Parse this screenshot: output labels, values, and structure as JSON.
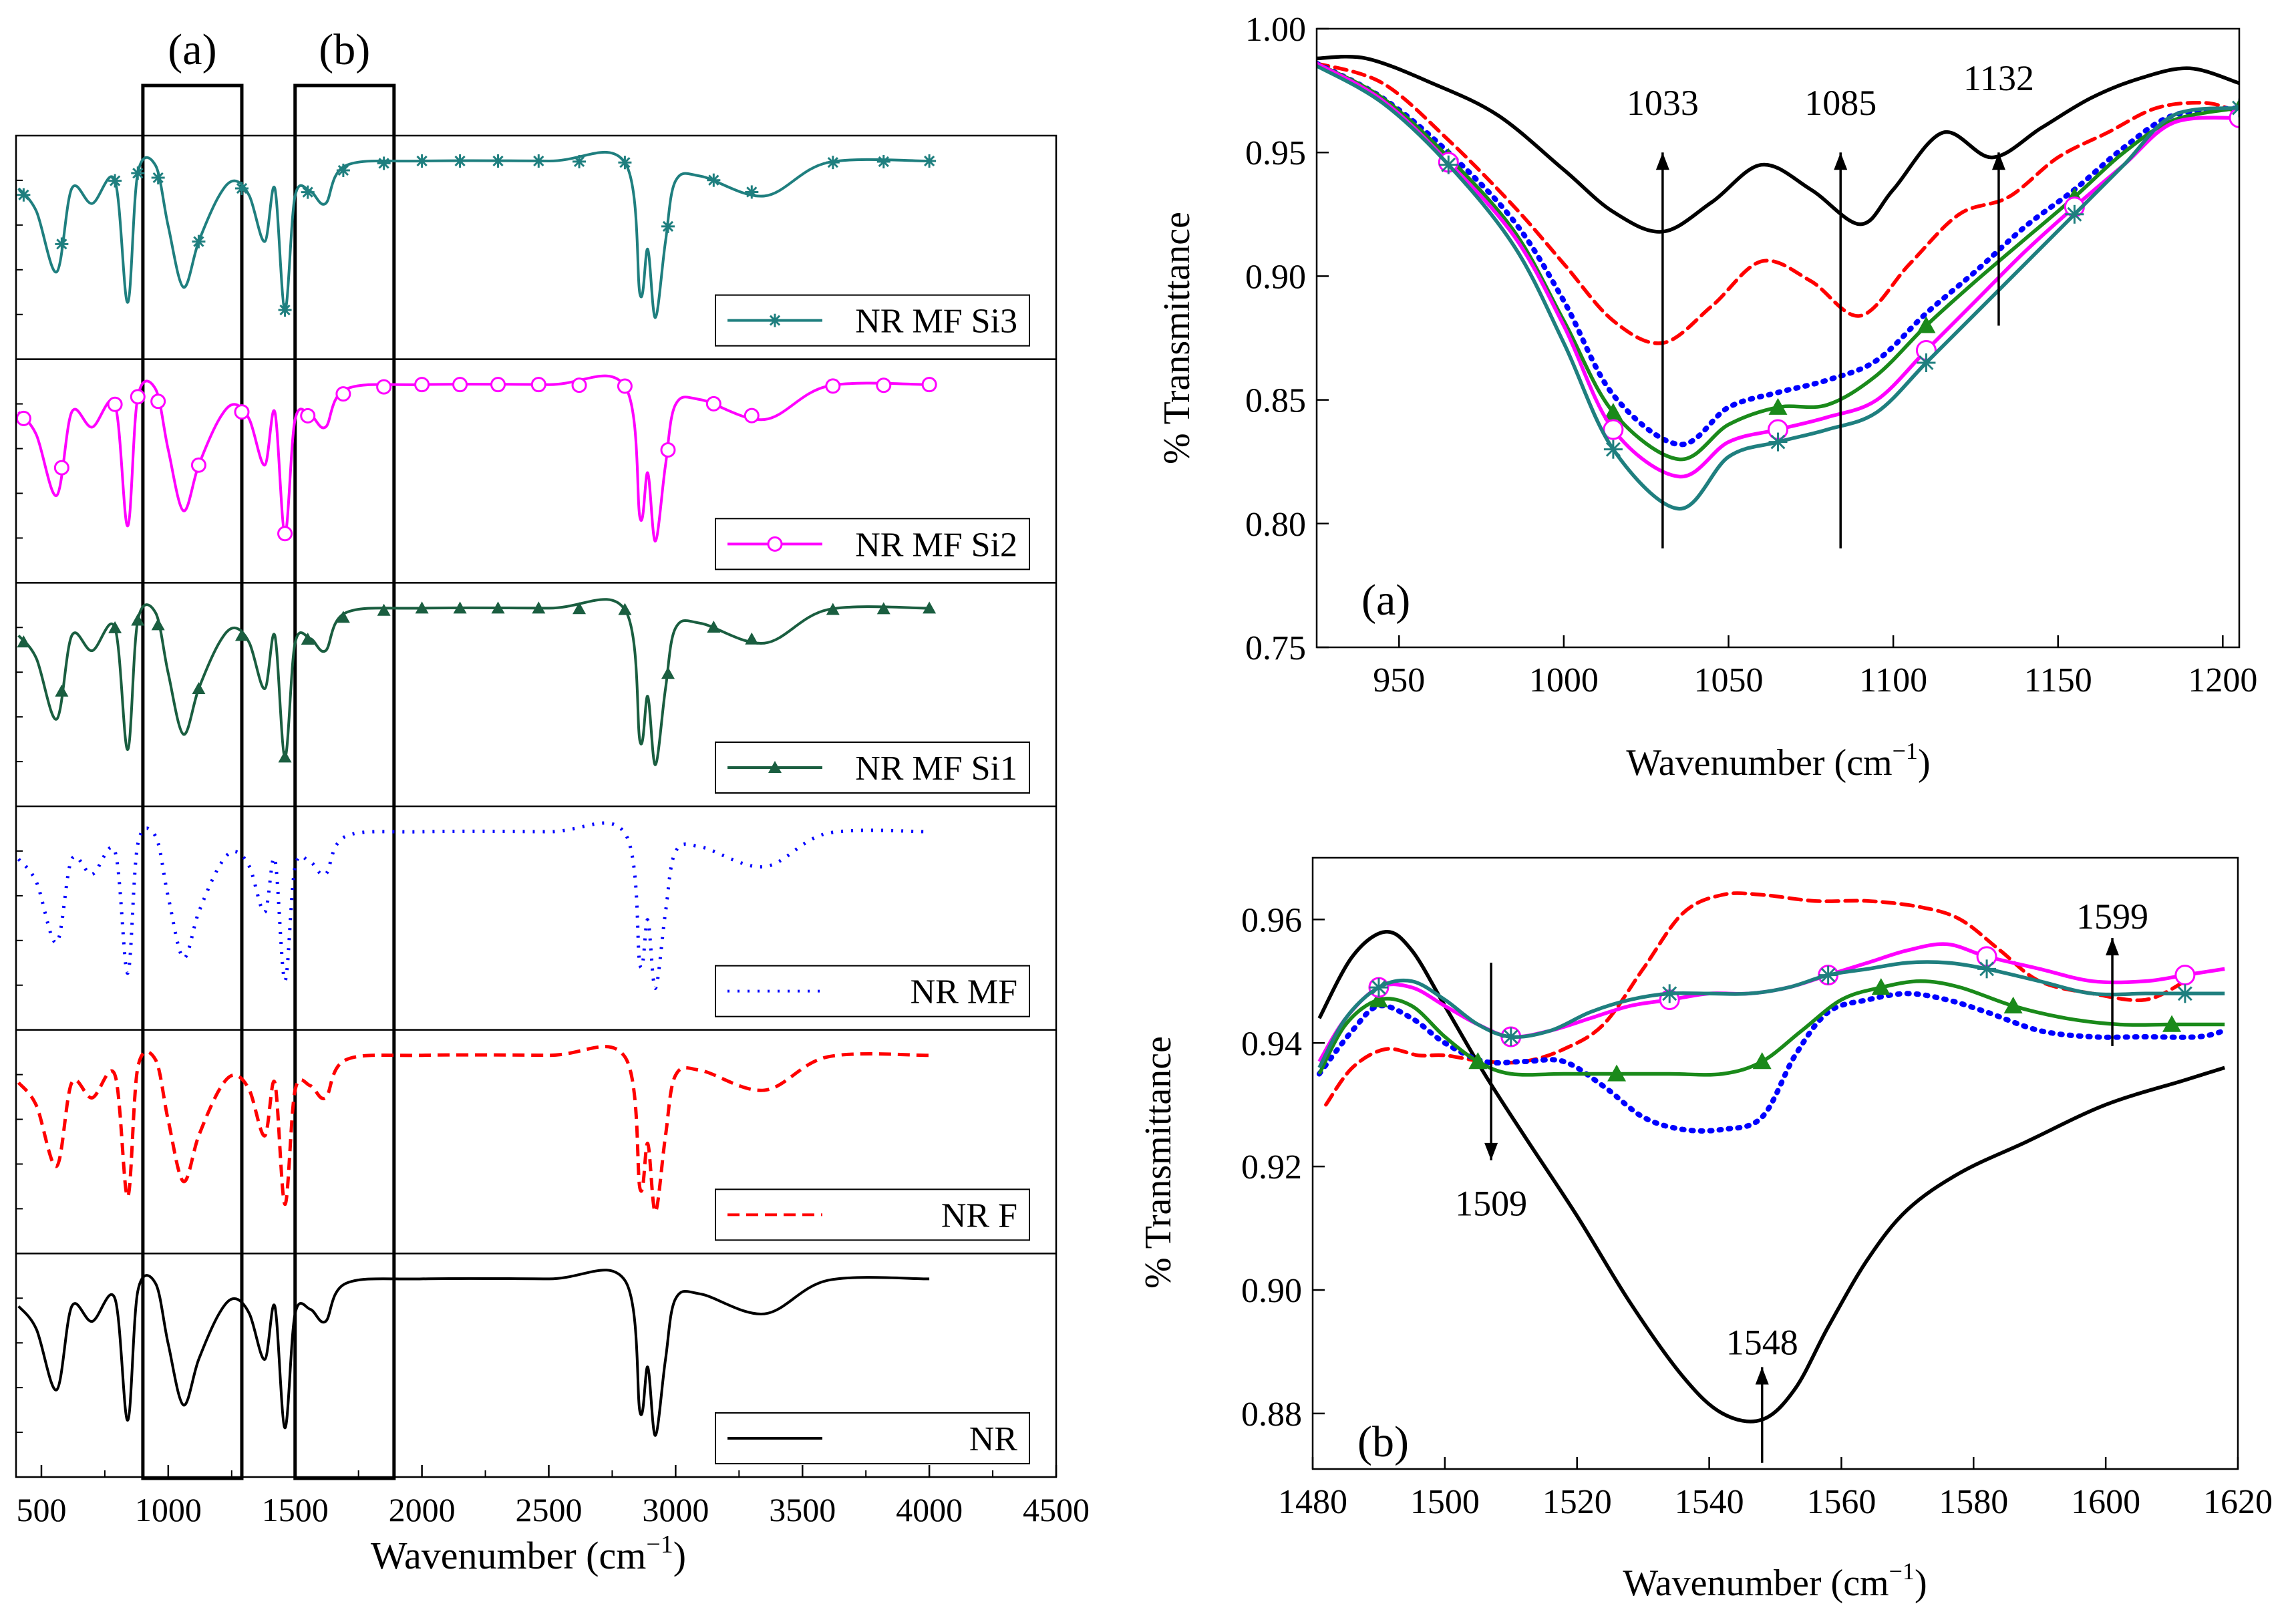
{
  "chart_data": [
    {
      "id": "stacked",
      "type": "line",
      "title": "",
      "xlabel": "Wavenumber (cm",
      "xlabel_sup": "−1",
      "xlabel_close": ")",
      "xlim": [
        400,
        4500
      ],
      "xticks": [
        500,
        1000,
        1500,
        2000,
        2500,
        3000,
        3500,
        4000,
        4500
      ],
      "box_labels": [
        "(a)",
        "(b)"
      ],
      "boxes": [
        [
          900,
          1290
        ],
        [
          1500,
          1890
        ]
      ],
      "series": [
        {
          "name": "NR MF Si3",
          "color": "#1f7f7f",
          "marker": "star",
          "dash": ""
        },
        {
          "name": "NR MF Si2",
          "color": "#ff00ff",
          "marker": "circle",
          "dash": ""
        },
        {
          "name": "NR MF Si1",
          "color": "#1a5e40",
          "marker": "triangle",
          "dash": ""
        },
        {
          "name": "NR MF",
          "color": "#0000ff",
          "marker": "none",
          "dash": "3 12"
        },
        {
          "name": "NR F",
          "color": "#ff0000",
          "marker": "none",
          "dash": "18 10"
        },
        {
          "name": "NR",
          "color": "#000000",
          "marker": "none",
          "dash": ""
        }
      ],
      "spectrum": [
        [
          410,
          0.2
        ],
        [
          480,
          0.35
        ],
        [
          560,
          0.75
        ],
        [
          620,
          0.2
        ],
        [
          700,
          0.3
        ],
        [
          790,
          0.15
        ],
        [
          840,
          0.95
        ],
        [
          880,
          0.1
        ],
        [
          950,
          0.05
        ],
        [
          1000,
          0.45
        ],
        [
          1060,
          0.85
        ],
        [
          1120,
          0.55
        ],
        [
          1200,
          0.25
        ],
        [
          1260,
          0.15
        ],
        [
          1320,
          0.25
        ],
        [
          1380,
          0.55
        ],
        [
          1420,
          0.2
        ],
        [
          1460,
          1.0
        ],
        [
          1500,
          0.25
        ],
        [
          1560,
          0.22
        ],
        [
          1620,
          0.3
        ],
        [
          1700,
          0.05
        ],
        [
          2000,
          0.02
        ],
        [
          2500,
          0.02
        ],
        [
          2800,
          0.03
        ],
        [
          2860,
          0.9
        ],
        [
          2890,
          0.6
        ],
        [
          2920,
          1.05
        ],
        [
          2960,
          0.55
        ],
        [
          3000,
          0.15
        ],
        [
          3100,
          0.12
        ],
        [
          3350,
          0.25
        ],
        [
          3600,
          0.03
        ],
        [
          4000,
          0.02
        ]
      ]
    },
    {
      "id": "panel_a",
      "type": "line",
      "panel_label": "(a)",
      "xlabel": "Wavenumber (cm",
      "xlabel_sup": "−1",
      "xlabel_close": ")",
      "ylabel": "% Transmittance",
      "xlim": [
        925,
        1205
      ],
      "ylim": [
        0.75,
        1.0
      ],
      "xticks": [
        950,
        1000,
        1050,
        1100,
        1150,
        1200
      ],
      "yticks": [
        "0.75",
        "0.80",
        "0.85",
        "0.90",
        "0.95",
        "1.00"
      ],
      "annotations": [
        {
          "text": "1033",
          "x": 1030,
          "arrow_from": 0.79,
          "arrow_to": 0.95,
          "label_y": 0.97
        },
        {
          "text": "1085",
          "x": 1084,
          "arrow_from": 0.79,
          "arrow_to": 0.95,
          "label_y": 0.97
        },
        {
          "text": "1132",
          "x": 1132,
          "arrow_from": 0.88,
          "arrow_to": 0.95,
          "label_y": 0.98
        }
      ],
      "series": [
        {
          "name": "NR",
          "color": "#000000",
          "dash": "",
          "marker": "none",
          "x": [
            925,
            940,
            960,
            980,
            1000,
            1015,
            1030,
            1045,
            1060,
            1075,
            1090,
            1100,
            1115,
            1130,
            1145,
            1160,
            1175,
            1190,
            1205
          ],
          "y": [
            0.988,
            0.988,
            0.978,
            0.965,
            0.943,
            0.926,
            0.918,
            0.93,
            0.945,
            0.935,
            0.921,
            0.935,
            0.958,
            0.948,
            0.96,
            0.972,
            0.98,
            0.984,
            0.978
          ]
        },
        {
          "name": "NR F",
          "color": "#ff0000",
          "dash": "18 10",
          "marker": "none",
          "x": [
            925,
            945,
            965,
            985,
            1000,
            1015,
            1030,
            1045,
            1060,
            1075,
            1090,
            1105,
            1120,
            1135,
            1150,
            1165,
            1180,
            1195,
            1205
          ],
          "y": [
            0.986,
            0.978,
            0.955,
            0.928,
            0.905,
            0.882,
            0.873,
            0.888,
            0.906,
            0.898,
            0.884,
            0.905,
            0.925,
            0.932,
            0.948,
            0.958,
            0.968,
            0.97,
            0.966
          ]
        },
        {
          "name": "NR MF",
          "color": "#0000ff",
          "dash": "3 11",
          "marker": "none",
          "x": [
            925,
            945,
            965,
            985,
            1000,
            1015,
            1035,
            1050,
            1065,
            1080,
            1095,
            1110,
            1125,
            1140,
            1155,
            1170,
            1185,
            1205
          ],
          "y": [
            0.986,
            0.972,
            0.95,
            0.922,
            0.89,
            0.852,
            0.832,
            0.847,
            0.853,
            0.858,
            0.866,
            0.885,
            0.902,
            0.92,
            0.935,
            0.952,
            0.965,
            0.968
          ]
        },
        {
          "name": "NR MF Si1",
          "color": "#1a8a1a",
          "dash": "",
          "marker": "triangle",
          "x": [
            925,
            945,
            965,
            985,
            1000,
            1015,
            1035,
            1050,
            1065,
            1080,
            1095,
            1110,
            1125,
            1140,
            1155,
            1170,
            1185,
            1205
          ],
          "y": [
            0.986,
            0.972,
            0.948,
            0.918,
            0.882,
            0.845,
            0.826,
            0.84,
            0.847,
            0.848,
            0.86,
            0.88,
            0.898,
            0.915,
            0.932,
            0.95,
            0.963,
            0.968
          ]
        },
        {
          "name": "NR MF Si2",
          "color": "#ff00ff",
          "dash": "",
          "marker": "circle",
          "x": [
            925,
            945,
            965,
            985,
            1000,
            1015,
            1035,
            1050,
            1065,
            1080,
            1095,
            1110,
            1125,
            1140,
            1155,
            1170,
            1185,
            1205
          ],
          "y": [
            0.986,
            0.971,
            0.946,
            0.916,
            0.88,
            0.838,
            0.819,
            0.833,
            0.838,
            0.843,
            0.85,
            0.87,
            0.89,
            0.91,
            0.928,
            0.945,
            0.962,
            0.964
          ]
        },
        {
          "name": "NR MF Si3",
          "color": "#1f7f7f",
          "dash": "",
          "marker": "star",
          "x": [
            925,
            945,
            965,
            985,
            1000,
            1015,
            1035,
            1050,
            1065,
            1080,
            1095,
            1110,
            1125,
            1140,
            1155,
            1170,
            1185,
            1205
          ],
          "y": [
            0.985,
            0.97,
            0.945,
            0.912,
            0.873,
            0.83,
            0.806,
            0.827,
            0.833,
            0.838,
            0.845,
            0.865,
            0.885,
            0.905,
            0.925,
            0.945,
            0.965,
            0.968
          ]
        }
      ]
    },
    {
      "id": "panel_b",
      "type": "line",
      "panel_label": "(b)",
      "xlabel": "Wavenumber (cm",
      "xlabel_sup": "−1",
      "xlabel_close": ")",
      "ylabel": "% Transmittance",
      "xlim": [
        1480,
        1620
      ],
      "ylim": [
        0.871,
        0.97
      ],
      "xticks": [
        1480,
        1500,
        1520,
        1540,
        1560,
        1580,
        1600,
        1620
      ],
      "yticks": [
        "0.88",
        "0.90",
        "0.92",
        "0.94",
        "0.96"
      ],
      "annotations": [
        {
          "text": "1509",
          "x": 1507,
          "arrow_from": 0.953,
          "arrow_to": 0.921,
          "label_y": 0.914
        },
        {
          "text": "1548",
          "x": 1548,
          "arrow_from": 0.872,
          "arrow_to": 0.8875,
          "label_y": 0.8915
        },
        {
          "text": "1599",
          "x": 1601,
          "arrow_from": 0.9395,
          "arrow_to": 0.957,
          "label_y": 0.9605
        }
      ],
      "series": [
        {
          "name": "NR",
          "color": "#000000",
          "dash": "",
          "marker": "none",
          "x": [
            1481,
            1486,
            1491,
            1495,
            1500,
            1506,
            1512,
            1520,
            1528,
            1536,
            1542,
            1548,
            1553,
            1558,
            1564,
            1570,
            1578,
            1588,
            1600,
            1612,
            1618
          ],
          "y": [
            0.944,
            0.954,
            0.958,
            0.955,
            0.946,
            0.935,
            0.925,
            0.912,
            0.898,
            0.886,
            0.88,
            0.879,
            0.884,
            0.894,
            0.905,
            0.913,
            0.919,
            0.924,
            0.93,
            0.934,
            0.936
          ]
        },
        {
          "name": "NR F",
          "color": "#ff0000",
          "dash": "18 10",
          "marker": "none",
          "x": [
            1482,
            1486,
            1491,
            1496,
            1500,
            1506,
            1512,
            1518,
            1524,
            1530,
            1536,
            1542,
            1548,
            1556,
            1564,
            1572,
            1578,
            1584,
            1590,
            1598,
            1606,
            1612
          ],
          "y": [
            0.93,
            0.936,
            0.939,
            0.938,
            0.938,
            0.937,
            0.937,
            0.939,
            0.943,
            0.952,
            0.961,
            0.964,
            0.964,
            0.963,
            0.963,
            0.962,
            0.96,
            0.955,
            0.95,
            0.948,
            0.947,
            0.95
          ]
        },
        {
          "name": "NR MF",
          "color": "#0000ff",
          "dash": "3 11",
          "marker": "none",
          "x": [
            1481,
            1486,
            1490,
            1495,
            1500,
            1506,
            1512,
            1518,
            1524,
            1530,
            1536,
            1542,
            1548,
            1553,
            1558,
            1564,
            1570,
            1576,
            1582,
            1590,
            1598,
            1606,
            1614,
            1618
          ],
          "y": [
            0.935,
            0.942,
            0.946,
            0.944,
            0.94,
            0.937,
            0.937,
            0.937,
            0.933,
            0.928,
            0.926,
            0.926,
            0.928,
            0.938,
            0.945,
            0.947,
            0.948,
            0.947,
            0.945,
            0.942,
            0.941,
            0.941,
            0.941,
            0.942
          ]
        },
        {
          "name": "NR MF Si1",
          "color": "#1a8a1a",
          "dash": "",
          "marker": "triangle",
          "x": [
            1481,
            1485,
            1490,
            1495,
            1500,
            1505,
            1510,
            1518,
            1526,
            1534,
            1542,
            1548,
            1554,
            1560,
            1566,
            1572,
            1578,
            1586,
            1594,
            1602,
            1610,
            1618
          ],
          "y": [
            0.935,
            0.943,
            0.947,
            0.946,
            0.941,
            0.937,
            0.935,
            0.935,
            0.935,
            0.935,
            0.935,
            0.937,
            0.942,
            0.947,
            0.949,
            0.95,
            0.949,
            0.946,
            0.944,
            0.943,
            0.943,
            0.943
          ]
        },
        {
          "name": "NR MF Si2",
          "color": "#ff00ff",
          "dash": "",
          "marker": "circle",
          "x": [
            1481,
            1485,
            1490,
            1495,
            1500,
            1505,
            1510,
            1516,
            1522,
            1528,
            1534,
            1540,
            1546,
            1552,
            1558,
            1564,
            1570,
            1576,
            1582,
            1590,
            1598,
            1606,
            1612,
            1618
          ],
          "y": [
            0.937,
            0.944,
            0.949,
            0.949,
            0.946,
            0.943,
            0.941,
            0.942,
            0.944,
            0.946,
            0.947,
            0.948,
            0.948,
            0.949,
            0.951,
            0.953,
            0.955,
            0.956,
            0.954,
            0.952,
            0.95,
            0.95,
            0.951,
            0.952
          ]
        },
        {
          "name": "NR MF Si3",
          "color": "#1f7f7f",
          "dash": "",
          "marker": "star",
          "x": [
            1481,
            1485,
            1490,
            1495,
            1500,
            1505,
            1510,
            1516,
            1522,
            1528,
            1534,
            1540,
            1546,
            1552,
            1558,
            1564,
            1570,
            1576,
            1582,
            1590,
            1598,
            1606,
            1612,
            1618
          ],
          "y": [
            0.936,
            0.944,
            0.949,
            0.95,
            0.947,
            0.943,
            0.941,
            0.942,
            0.945,
            0.947,
            0.948,
            0.948,
            0.948,
            0.949,
            0.951,
            0.952,
            0.953,
            0.953,
            0.952,
            0.95,
            0.948,
            0.948,
            0.948,
            0.948
          ]
        }
      ]
    }
  ]
}
